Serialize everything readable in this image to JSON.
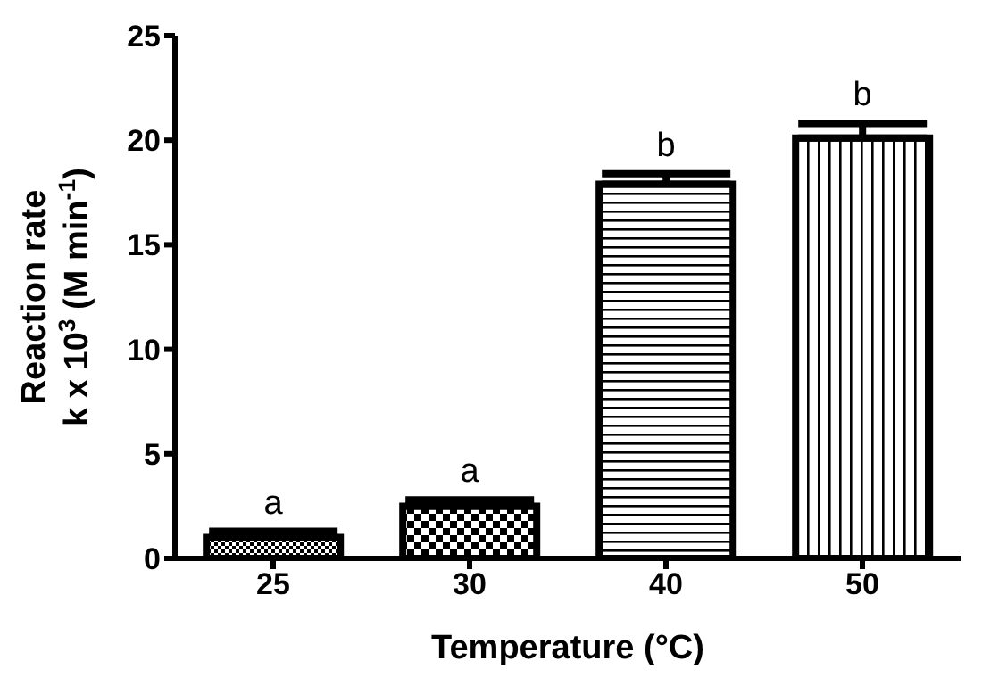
{
  "chart_data": {
    "type": "bar",
    "xlabel": "Temperature (°C)",
    "ylabel": "Reaction rate\nk x 10$^{3}$ (M min$^{-1}$)",
    "categories": [
      "25",
      "30",
      "40",
      "50"
    ],
    "values": [
      1.0,
      2.5,
      17.9,
      20.1
    ],
    "errors": [
      [
        1.0,
        1.3
      ],
      [
        2.5,
        2.8
      ],
      [
        17.9,
        18.4
      ],
      [
        20.1,
        20.8
      ]
    ],
    "colors": [
      "#000000",
      "#000000",
      "#000000",
      "#000000"
    ],
    "ylim": [
      0,
      25
    ],
    "yticks": [
      0,
      5,
      10,
      15,
      20,
      25
    ],
    "grid": false,
    "legend": false,
    "annotations": [
      "a",
      "a",
      "b",
      "b"
    ]
  }
}
